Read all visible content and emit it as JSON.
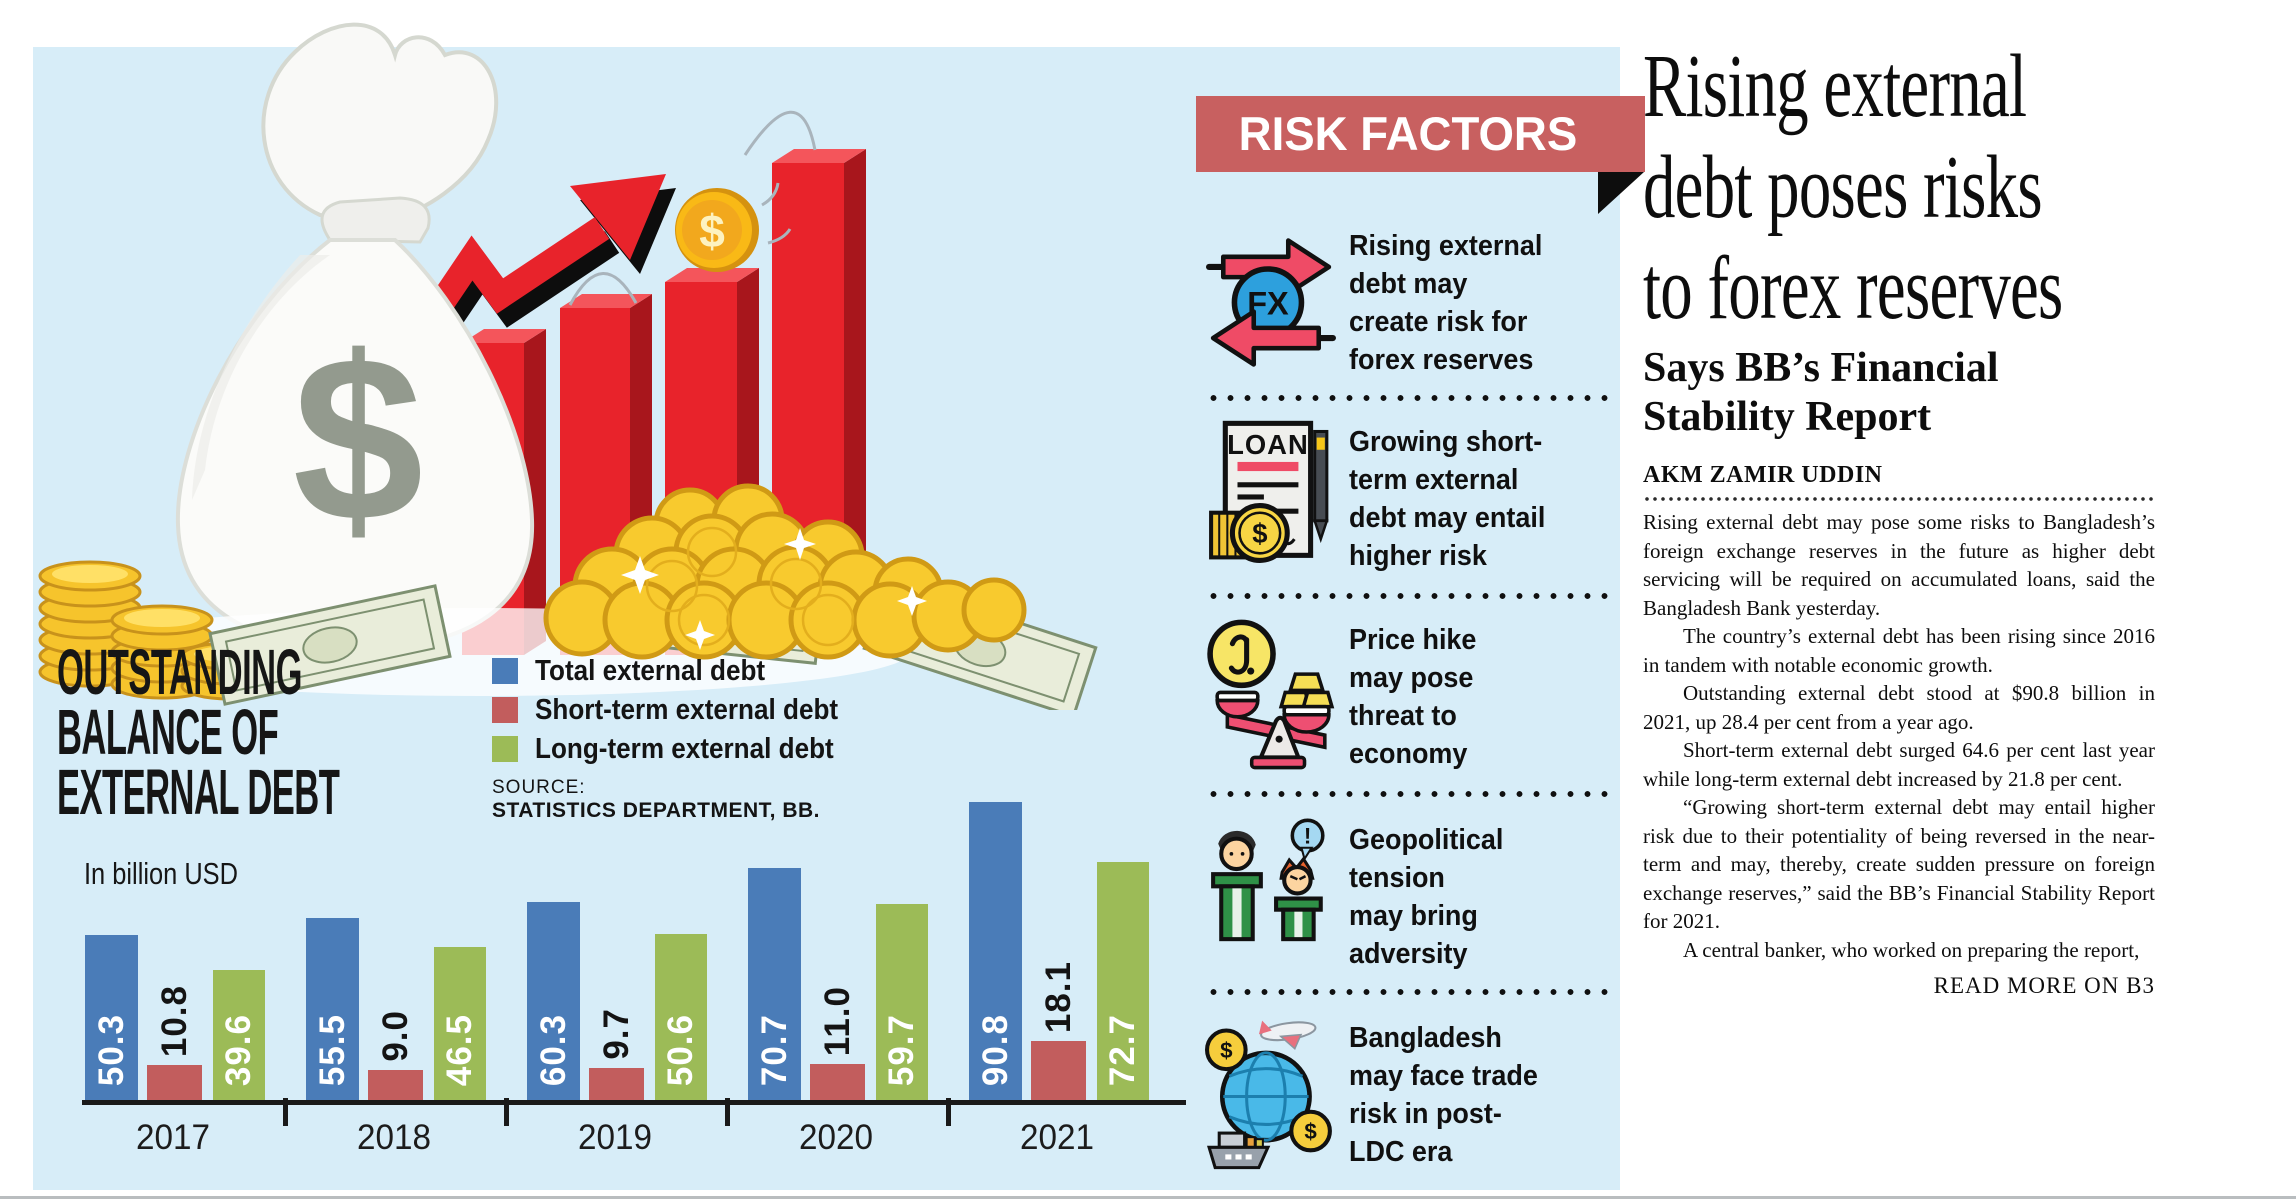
{
  "colors": {
    "panel_bg": "#d7edf8",
    "banner_bg": "#c86060",
    "bar_blue": "#4a7cb8",
    "bar_red": "#c25d5d",
    "bar_green": "#9cbb57",
    "illustration_red": "#e8232b",
    "gold": "#f6c52e"
  },
  "infographic": {
    "title_lines": [
      "OUTSTANDING",
      "BALANCE OF",
      "EXTERNAL DEBT"
    ],
    "unit_label": "In billion USD",
    "source_label": "SOURCE:",
    "source_name": "STATISTICS DEPARTMENT, BB."
  },
  "chart_data": {
    "type": "bar",
    "title": "OUTSTANDING BALANCE OF EXTERNAL DEBT",
    "ylabel": "In billion USD",
    "categories": [
      "2017",
      "2018",
      "2019",
      "2020",
      "2021"
    ],
    "series": [
      {
        "name": "Total external debt",
        "color": "#4a7cb8",
        "values": [
          50.3,
          55.5,
          60.3,
          70.7,
          90.8
        ]
      },
      {
        "name": "Short-term external debt",
        "color": "#c25d5d",
        "values": [
          10.8,
          9.0,
          9.7,
          11.0,
          18.1
        ]
      },
      {
        "name": "Long-term external debt",
        "color": "#9cbb57",
        "values": [
          39.6,
          46.5,
          50.6,
          59.7,
          72.7
        ]
      }
    ],
    "value_labels": true,
    "legend_position": "top-right",
    "grid": false
  },
  "risk_panel": {
    "header": "RISK FACTORS",
    "items": [
      {
        "icon": "fx-exchange-icon",
        "lines": [
          "Rising external",
          "debt may",
          "create risk for",
          "forex reserves"
        ],
        "text": "Rising external debt may create risk for forex reserves"
      },
      {
        "icon": "loan-document-icon",
        "lines": [
          "Growing short-",
          "term external",
          "debt may entail",
          "higher risk"
        ],
        "text": "Growing short-term external debt may entail higher risk"
      },
      {
        "icon": "price-hike-scale-icon",
        "lines": [
          "Price hike",
          "may pose",
          "threat to",
          "economy"
        ],
        "text": "Price hike may pose threat to economy"
      },
      {
        "icon": "geopolitical-tension-icon",
        "lines": [
          "Geopolitical",
          "tension",
          "may bring",
          "adversity"
        ],
        "text": "Geopolitical tension may bring adversity"
      },
      {
        "icon": "trade-globe-icon",
        "lines": [
          "Bangladesh",
          "may face trade",
          "risk in post-",
          "LDC era"
        ],
        "text": "Bangladesh may face trade risk in post-LDC era"
      }
    ]
  },
  "article": {
    "headline_lines": [
      "Rising external",
      "debt poses risks",
      "to forex reserves"
    ],
    "subhead_lines": [
      "Says BB’s Financial",
      "Stability Report"
    ],
    "byline": "AKM ZAMIR UDDIN",
    "paragraphs": [
      "Rising external debt may pose some risks to Bangladesh’s foreign exchange reserves in the future as higher debt servicing will be required on accumulated loans, said the Bangladesh Bank yesterday.",
      "The country’s external debt has been rising since 2016 in tandem with notable economic growth.",
      "Outstanding external debt stood at $90.8 billion in 2021, up 28.4 per cent from a year ago.",
      "Short-term external debt surged 64.6 per cent last year while long-term external debt increased by 21.8 per cent.",
      "“Growing short-term external debt may entail higher risk due to their potentiality of being reversed in the near-term and may, thereby, create sudden pressure on foreign exchange reserves,” said the BB’s Financial Stability Report for 2021.",
      "A central banker, who worked on preparing the report,"
    ],
    "read_more": "READ MORE ON B3"
  }
}
